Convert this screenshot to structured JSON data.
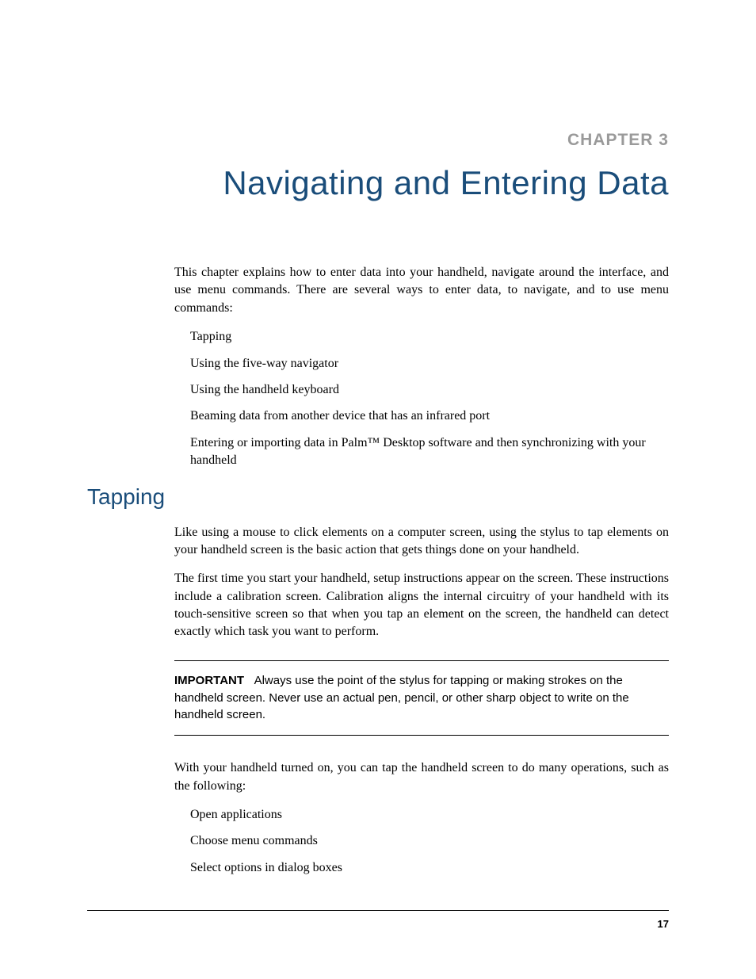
{
  "colors": {
    "heading_color": "#1a4d7a",
    "chapter_label_color": "#9a9a9a",
    "text_color": "#000000",
    "background_color": "#ffffff",
    "rule_color": "#000000"
  },
  "typography": {
    "body_font": "Palatino Linotype",
    "heading_font": "Arial Narrow",
    "chapter_label_fontsize": 21,
    "chapter_title_fontsize": 42,
    "section_heading_fontsize": 28,
    "body_fontsize": 16,
    "important_fontsize": 15,
    "page_number_fontsize": 13
  },
  "chapter": {
    "label": "CHAPTER 3",
    "title": "Navigating and Entering Data"
  },
  "intro": {
    "text": "This chapter explains how to enter data into your handheld, navigate around the interface, and use menu commands. There are several ways to enter data, to navigate, and to use menu commands:"
  },
  "intro_list": {
    "items": [
      "Tapping",
      "Using the five-way navigator",
      "Using the handheld keyboard",
      "Beaming data from another device that has an infrared port",
      "Entering or importing data in Palm™ Desktop software and then synchronizing with your handheld"
    ]
  },
  "section": {
    "heading": "Tapping",
    "para1": "Like using a mouse to click elements on a computer screen, using the stylus to tap elements on your handheld screen is the basic action that gets things done on your handheld.",
    "para2": "The first time you start your handheld, setup instructions appear on the screen. These instructions include a calibration screen. Calibration aligns the internal circuitry of your handheld with its touch-sensitive screen so that when you tap an element on the screen, the handheld can detect exactly which task you want to perform."
  },
  "important": {
    "label": "IMPORTANT",
    "text": "Always use the point of the stylus for tapping or making strokes on the handheld screen. Never use an actual pen, pencil, or other sharp object to write on the handheld screen."
  },
  "after_important": {
    "text": "With your handheld turned on, you can tap the handheld screen to do many operations, such as the following:"
  },
  "ops_list": {
    "items": [
      "Open applications",
      "Choose menu commands",
      "Select options in dialog boxes"
    ]
  },
  "footer": {
    "page_number": "17"
  }
}
